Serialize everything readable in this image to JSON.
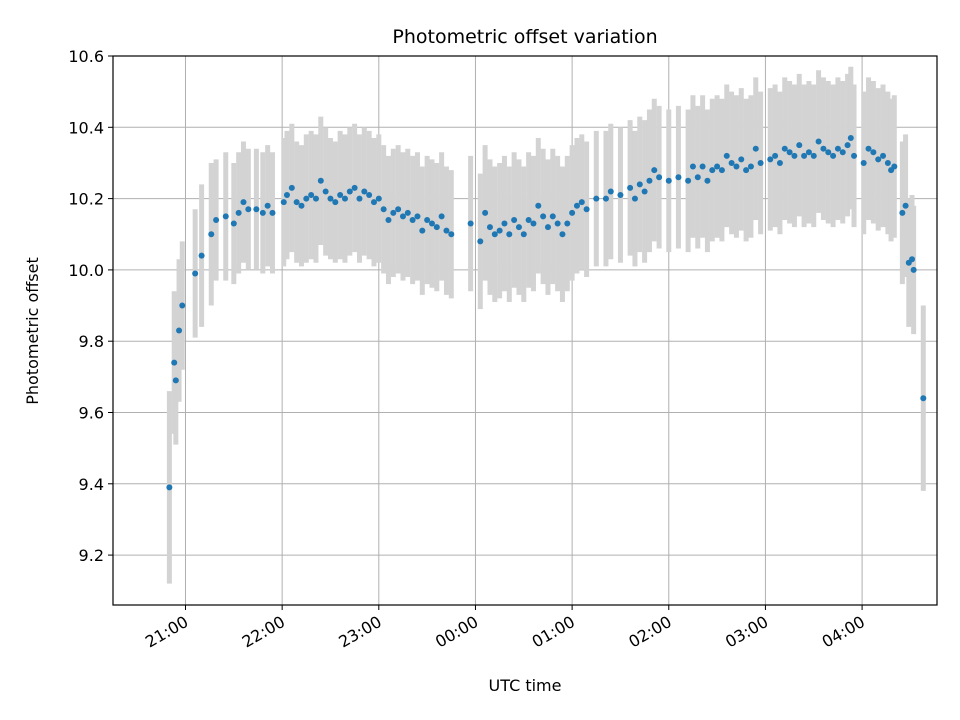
{
  "chart_data": {
    "type": "scatter",
    "title": "Photometric offset variation",
    "xlabel": "UTC time",
    "ylabel": "Photometric offset",
    "grid": true,
    "x_ticks": [
      "20:00",
      "21:00",
      "22:00",
      "23:00",
      "00:00",
      "01:00",
      "02:00",
      "03:00",
      "04:00",
      "05:00"
    ],
    "x_tick_labels": [
      "21:00",
      "22:00",
      "23:00",
      "00:00",
      "01:00",
      "02:00",
      "03:00",
      "04:00"
    ],
    "xlim_minutes_after_2000": [
      15.0,
      526.5
    ],
    "y_ticks": [
      "9.2",
      "9.4",
      "9.6",
      "9.8",
      "10.0",
      "10.2",
      "10.4",
      "10.6"
    ],
    "ylim": [
      9.06,
      10.6
    ],
    "colors": {
      "point": "#1f77b4",
      "errorbar": "#d3d3d3",
      "grid": "#b0b0b0"
    },
    "points": [
      {
        "t": "20:50",
        "y": 9.39,
        "err": 0.27
      },
      {
        "t": "20:53",
        "y": 9.74,
        "err": 0.2
      },
      {
        "t": "20:54",
        "y": 9.69,
        "err": 0.18
      },
      {
        "t": "20:56",
        "y": 9.83,
        "err": 0.2
      },
      {
        "t": "20:58",
        "y": 9.9,
        "err": 0.18
      },
      {
        "t": "21:06",
        "y": 9.99,
        "err": 0.18
      },
      {
        "t": "21:10",
        "y": 10.04,
        "err": 0.2
      },
      {
        "t": "21:16",
        "y": 10.1,
        "err": 0.2
      },
      {
        "t": "21:19",
        "y": 10.14,
        "err": 0.17
      },
      {
        "t": "21:25",
        "y": 10.15,
        "err": 0.18
      },
      {
        "t": "21:30",
        "y": 10.13,
        "err": 0.17
      },
      {
        "t": "21:33",
        "y": 10.16,
        "err": 0.17
      },
      {
        "t": "21:36",
        "y": 10.19,
        "err": 0.17
      },
      {
        "t": "21:39",
        "y": 10.17,
        "err": 0.17
      },
      {
        "t": "21:44",
        "y": 10.17,
        "err": 0.17
      },
      {
        "t": "21:48",
        "y": 10.16,
        "err": 0.17
      },
      {
        "t": "21:51",
        "y": 10.18,
        "err": 0.17
      },
      {
        "t": "21:54",
        "y": 10.16,
        "err": 0.17
      },
      {
        "t": "22:01",
        "y": 10.19,
        "err": 0.18
      },
      {
        "t": "22:03",
        "y": 10.21,
        "err": 0.18
      },
      {
        "t": "22:06",
        "y": 10.23,
        "err": 0.18
      },
      {
        "t": "22:09",
        "y": 10.19,
        "err": 0.17
      },
      {
        "t": "22:12",
        "y": 10.18,
        "err": 0.17
      },
      {
        "t": "22:15",
        "y": 10.2,
        "err": 0.18
      },
      {
        "t": "22:18",
        "y": 10.21,
        "err": 0.18
      },
      {
        "t": "22:21",
        "y": 10.2,
        "err": 0.18
      },
      {
        "t": "22:24",
        "y": 10.25,
        "err": 0.18
      },
      {
        "t": "22:27",
        "y": 10.22,
        "err": 0.18
      },
      {
        "t": "22:30",
        "y": 10.2,
        "err": 0.17
      },
      {
        "t": "22:33",
        "y": 10.19,
        "err": 0.17
      },
      {
        "t": "22:36",
        "y": 10.21,
        "err": 0.18
      },
      {
        "t": "22:39",
        "y": 10.2,
        "err": 0.18
      },
      {
        "t": "22:42",
        "y": 10.22,
        "err": 0.18
      },
      {
        "t": "22:45",
        "y": 10.23,
        "err": 0.18
      },
      {
        "t": "22:48",
        "y": 10.2,
        "err": 0.18
      },
      {
        "t": "22:51",
        "y": 10.22,
        "err": 0.18
      },
      {
        "t": "22:54",
        "y": 10.21,
        "err": 0.18
      },
      {
        "t": "22:57",
        "y": 10.19,
        "err": 0.18
      },
      {
        "t": "23:00",
        "y": 10.2,
        "err": 0.18
      },
      {
        "t": "23:03",
        "y": 10.17,
        "err": 0.18
      },
      {
        "t": "23:06",
        "y": 10.14,
        "err": 0.18
      },
      {
        "t": "23:09",
        "y": 10.16,
        "err": 0.18
      },
      {
        "t": "23:12",
        "y": 10.17,
        "err": 0.18
      },
      {
        "t": "23:15",
        "y": 10.15,
        "err": 0.18
      },
      {
        "t": "23:18",
        "y": 10.16,
        "err": 0.18
      },
      {
        "t": "23:21",
        "y": 10.14,
        "err": 0.18
      },
      {
        "t": "23:24",
        "y": 10.15,
        "err": 0.18
      },
      {
        "t": "23:27",
        "y": 10.11,
        "err": 0.18
      },
      {
        "t": "23:30",
        "y": 10.14,
        "err": 0.18
      },
      {
        "t": "23:33",
        "y": 10.13,
        "err": 0.18
      },
      {
        "t": "23:36",
        "y": 10.12,
        "err": 0.18
      },
      {
        "t": "23:39",
        "y": 10.15,
        "err": 0.18
      },
      {
        "t": "23:42",
        "y": 10.11,
        "err": 0.18
      },
      {
        "t": "23:45",
        "y": 10.1,
        "err": 0.18
      },
      {
        "t": "23:57",
        "y": 10.13,
        "err": 0.19
      },
      {
        "t": "00:03",
        "y": 10.08,
        "err": 0.19
      },
      {
        "t": "00:06",
        "y": 10.16,
        "err": 0.19
      },
      {
        "t": "00:09",
        "y": 10.12,
        "err": 0.19
      },
      {
        "t": "00:12",
        "y": 10.1,
        "err": 0.19
      },
      {
        "t": "00:15",
        "y": 10.11,
        "err": 0.19
      },
      {
        "t": "00:18",
        "y": 10.13,
        "err": 0.19
      },
      {
        "t": "00:21",
        "y": 10.1,
        "err": 0.19
      },
      {
        "t": "00:24",
        "y": 10.14,
        "err": 0.19
      },
      {
        "t": "00:27",
        "y": 10.12,
        "err": 0.19
      },
      {
        "t": "00:30",
        "y": 10.1,
        "err": 0.19
      },
      {
        "t": "00:33",
        "y": 10.14,
        "err": 0.19
      },
      {
        "t": "00:36",
        "y": 10.13,
        "err": 0.19
      },
      {
        "t": "00:39",
        "y": 10.18,
        "err": 0.19
      },
      {
        "t": "00:42",
        "y": 10.15,
        "err": 0.19
      },
      {
        "t": "00:45",
        "y": 10.12,
        "err": 0.19
      },
      {
        "t": "00:48",
        "y": 10.15,
        "err": 0.19
      },
      {
        "t": "00:51",
        "y": 10.13,
        "err": 0.19
      },
      {
        "t": "00:54",
        "y": 10.1,
        "err": 0.19
      },
      {
        "t": "00:57",
        "y": 10.13,
        "err": 0.19
      },
      {
        "t": "01:00",
        "y": 10.16,
        "err": 0.19
      },
      {
        "t": "01:03",
        "y": 10.18,
        "err": 0.19
      },
      {
        "t": "01:06",
        "y": 10.19,
        "err": 0.19
      },
      {
        "t": "01:09",
        "y": 10.17,
        "err": 0.19
      },
      {
        "t": "01:15",
        "y": 10.2,
        "err": 0.19
      },
      {
        "t": "01:21",
        "y": 10.2,
        "err": 0.19
      },
      {
        "t": "01:24",
        "y": 10.22,
        "err": 0.19
      },
      {
        "t": "01:30",
        "y": 10.21,
        "err": 0.19
      },
      {
        "t": "01:36",
        "y": 10.23,
        "err": 0.19
      },
      {
        "t": "01:39",
        "y": 10.2,
        "err": 0.19
      },
      {
        "t": "01:42",
        "y": 10.24,
        "err": 0.19
      },
      {
        "t": "01:45",
        "y": 10.22,
        "err": 0.2
      },
      {
        "t": "01:48",
        "y": 10.25,
        "err": 0.2
      },
      {
        "t": "01:51",
        "y": 10.28,
        "err": 0.2
      },
      {
        "t": "01:54",
        "y": 10.26,
        "err": 0.2
      },
      {
        "t": "02:00",
        "y": 10.25,
        "err": 0.2
      },
      {
        "t": "02:06",
        "y": 10.26,
        "err": 0.2
      },
      {
        "t": "02:12",
        "y": 10.25,
        "err": 0.2
      },
      {
        "t": "02:15",
        "y": 10.29,
        "err": 0.2
      },
      {
        "t": "02:18",
        "y": 10.26,
        "err": 0.2
      },
      {
        "t": "02:21",
        "y": 10.29,
        "err": 0.2
      },
      {
        "t": "02:24",
        "y": 10.25,
        "err": 0.2
      },
      {
        "t": "02:27",
        "y": 10.28,
        "err": 0.2
      },
      {
        "t": "02:30",
        "y": 10.29,
        "err": 0.2
      },
      {
        "t": "02:33",
        "y": 10.28,
        "err": 0.2
      },
      {
        "t": "02:36",
        "y": 10.32,
        "err": 0.2
      },
      {
        "t": "02:39",
        "y": 10.3,
        "err": 0.2
      },
      {
        "t": "02:42",
        "y": 10.29,
        "err": 0.2
      },
      {
        "t": "02:45",
        "y": 10.31,
        "err": 0.2
      },
      {
        "t": "02:48",
        "y": 10.28,
        "err": 0.2
      },
      {
        "t": "02:51",
        "y": 10.29,
        "err": 0.2
      },
      {
        "t": "02:54",
        "y": 10.34,
        "err": 0.2
      },
      {
        "t": "02:57",
        "y": 10.3,
        "err": 0.2
      },
      {
        "t": "03:03",
        "y": 10.31,
        "err": 0.2
      },
      {
        "t": "03:06",
        "y": 10.32,
        "err": 0.2
      },
      {
        "t": "03:09",
        "y": 10.3,
        "err": 0.2
      },
      {
        "t": "03:12",
        "y": 10.34,
        "err": 0.2
      },
      {
        "t": "03:15",
        "y": 10.33,
        "err": 0.2
      },
      {
        "t": "03:18",
        "y": 10.32,
        "err": 0.2
      },
      {
        "t": "03:21",
        "y": 10.35,
        "err": 0.2
      },
      {
        "t": "03:24",
        "y": 10.32,
        "err": 0.2
      },
      {
        "t": "03:27",
        "y": 10.33,
        "err": 0.2
      },
      {
        "t": "03:30",
        "y": 10.32,
        "err": 0.2
      },
      {
        "t": "03:33",
        "y": 10.36,
        "err": 0.2
      },
      {
        "t": "03:36",
        "y": 10.34,
        "err": 0.2
      },
      {
        "t": "03:39",
        "y": 10.33,
        "err": 0.2
      },
      {
        "t": "03:42",
        "y": 10.32,
        "err": 0.2
      },
      {
        "t": "03:45",
        "y": 10.34,
        "err": 0.2
      },
      {
        "t": "03:48",
        "y": 10.33,
        "err": 0.2
      },
      {
        "t": "03:51",
        "y": 10.35,
        "err": 0.2
      },
      {
        "t": "03:53",
        "y": 10.37,
        "err": 0.2
      },
      {
        "t": "03:55",
        "y": 10.32,
        "err": 0.2
      },
      {
        "t": "04:01",
        "y": 10.3,
        "err": 0.2
      },
      {
        "t": "04:04",
        "y": 10.34,
        "err": 0.2
      },
      {
        "t": "04:07",
        "y": 10.33,
        "err": 0.2
      },
      {
        "t": "04:10",
        "y": 10.31,
        "err": 0.2
      },
      {
        "t": "04:13",
        "y": 10.32,
        "err": 0.2
      },
      {
        "t": "04:16",
        "y": 10.3,
        "err": 0.2
      },
      {
        "t": "04:18",
        "y": 10.28,
        "err": 0.2
      },
      {
        "t": "04:20",
        "y": 10.29,
        "err": 0.2
      },
      {
        "t": "04:25",
        "y": 10.16,
        "err": 0.2
      },
      {
        "t": "04:27",
        "y": 10.18,
        "err": 0.2
      },
      {
        "t": "04:29",
        "y": 10.02,
        "err": 0.18
      },
      {
        "t": "04:31",
        "y": 10.03,
        "err": 0.18
      },
      {
        "t": "04:32",
        "y": 10.0,
        "err": 0.18
      },
      {
        "t": "04:38",
        "y": 9.64,
        "err": 0.26
      }
    ]
  }
}
